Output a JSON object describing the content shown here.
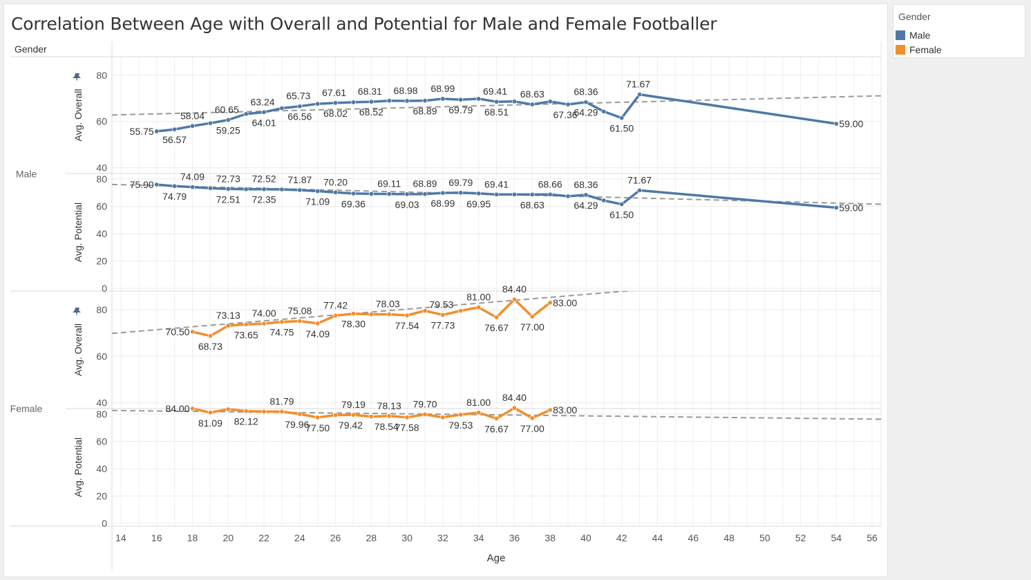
{
  "title": "Correlation Between Age with Overall and Potential for Male and Female Footballer",
  "row_header": "Gender",
  "colors": {
    "Male": "#4e79a7",
    "Female": "#f28e2b",
    "trend": "#999999"
  },
  "legend": {
    "title": "Gender",
    "items": [
      {
        "label": "Male",
        "color": "#4e79a7"
      },
      {
        "label": "Female",
        "color": "#f28e2b"
      }
    ]
  },
  "chart_data": {
    "type": "line",
    "xlabel": "Age",
    "xlim": [
      13.5,
      56.5
    ],
    "x_ticks": [
      14,
      16,
      18,
      20,
      22,
      24,
      26,
      28,
      30,
      32,
      34,
      36,
      38,
      40,
      42,
      44,
      46,
      48,
      50,
      52,
      54,
      56
    ],
    "row_labels": [
      "Male",
      "Female"
    ],
    "panes": [
      {
        "gender": "Male",
        "measure": "Avg. Overall",
        "ylabel": "Avg. Overall",
        "ylim": [
          37.5,
          88
        ],
        "yticks": [
          40,
          60,
          80
        ],
        "pinned": true,
        "x": [
          16,
          17,
          18,
          19,
          20,
          21,
          22,
          23,
          24,
          25,
          26,
          27,
          28,
          29,
          30,
          31,
          32,
          33,
          34,
          35,
          36,
          37,
          38,
          39,
          40,
          41,
          42,
          43,
          54
        ],
        "y": [
          55.75,
          56.57,
          58.04,
          59.25,
          60.65,
          63.24,
          64.01,
          65.73,
          66.56,
          67.61,
          68.02,
          68.31,
          68.52,
          68.98,
          68.89,
          68.99,
          69.79,
          69.41,
          69.79,
          68.51,
          68.63,
          67.36,
          68.63,
          67.36,
          68.36,
          64.29,
          61.5,
          71.67,
          59.0
        ],
        "labels": [
          {
            "x": 16,
            "text": "55.75",
            "pos": "left"
          },
          {
            "x": 17,
            "text": "56.57",
            "pos": "below"
          },
          {
            "x": 18,
            "text": "58.04",
            "pos": "above"
          },
          {
            "x": 20,
            "text": "59.25",
            "pos": "below"
          },
          {
            "x": 20,
            "text": "60.65",
            "pos": "above-l"
          },
          {
            "x": 22,
            "text": "63.24",
            "pos": "above-l"
          },
          {
            "x": 22,
            "text": "64.01",
            "pos": "below"
          },
          {
            "x": 24,
            "text": "65.73",
            "pos": "above-l"
          },
          {
            "x": 24,
            "text": "66.56",
            "pos": "below"
          },
          {
            "x": 26,
            "text": "67.61",
            "pos": "above-l"
          },
          {
            "x": 26,
            "text": "68.02",
            "pos": "below"
          },
          {
            "x": 28,
            "text": "68.31",
            "pos": "above-l"
          },
          {
            "x": 28,
            "text": "68.52",
            "pos": "below"
          },
          {
            "x": 30,
            "text": "68.98",
            "pos": "above-l"
          },
          {
            "x": 31,
            "text": "68.89",
            "pos": "below"
          },
          {
            "x": 32,
            "text": "68.99",
            "pos": "above"
          },
          {
            "x": 33,
            "text": "69.79",
            "pos": "below"
          },
          {
            "x": 35,
            "text": "69.41",
            "pos": "above-l"
          },
          {
            "x": 35,
            "text": "68.51",
            "pos": "below"
          },
          {
            "x": 37,
            "text": "68.63",
            "pos": "above"
          },
          {
            "x": 39,
            "text": "67.36",
            "pos": "below-l"
          },
          {
            "x": 40,
            "text": "68.36",
            "pos": "above"
          },
          {
            "x": 40,
            "text": "64.29",
            "pos": "below"
          },
          {
            "x": 42,
            "text": "61.50",
            "pos": "below"
          },
          {
            "x": 43,
            "text": "71.67",
            "pos": "above-l"
          },
          {
            "x": 54,
            "text": "59.00",
            "pos": "right"
          }
        ],
        "trend": [
          [
            13.5,
            62.8
          ],
          [
            56.5,
            71.1
          ]
        ]
      },
      {
        "gender": "Male",
        "measure": "Avg. Potential",
        "ylabel": "Avg. Potential",
        "ylim": [
          -2,
          84
        ],
        "yticks": [
          0,
          20,
          40,
          60,
          80
        ],
        "pinned": false,
        "x": [
          16,
          17,
          18,
          19,
          20,
          21,
          22,
          23,
          24,
          25,
          26,
          27,
          28,
          29,
          30,
          31,
          32,
          33,
          34,
          35,
          36,
          37,
          38,
          39,
          40,
          41,
          42,
          43,
          54
        ],
        "y": [
          75.9,
          74.79,
          74.09,
          73.3,
          72.73,
          72.51,
          72.52,
          72.35,
          71.87,
          71.09,
          70.2,
          69.36,
          69.11,
          69.03,
          68.89,
          68.99,
          69.79,
          69.95,
          69.41,
          68.63,
          68.66,
          68.63,
          68.66,
          67.36,
          68.36,
          64.29,
          61.5,
          71.67,
          59.0
        ],
        "labels": [
          {
            "x": 16,
            "text": "75.90",
            "pos": "left"
          },
          {
            "x": 17,
            "text": "74.79",
            "pos": "below"
          },
          {
            "x": 18,
            "text": "74.09",
            "pos": "above"
          },
          {
            "x": 20,
            "text": "72.73",
            "pos": "above"
          },
          {
            "x": 20,
            "text": "72.51",
            "pos": "below"
          },
          {
            "x": 22,
            "text": "72.52",
            "pos": "above"
          },
          {
            "x": 22,
            "text": "72.35",
            "pos": "below"
          },
          {
            "x": 24,
            "text": "71.87",
            "pos": "above"
          },
          {
            "x": 25,
            "text": "71.09",
            "pos": "below"
          },
          {
            "x": 26,
            "text": "70.20",
            "pos": "above"
          },
          {
            "x": 27,
            "text": "69.36",
            "pos": "below"
          },
          {
            "x": 29,
            "text": "69.11",
            "pos": "above"
          },
          {
            "x": 30,
            "text": "69.03",
            "pos": "below"
          },
          {
            "x": 31,
            "text": "68.89",
            "pos": "above"
          },
          {
            "x": 32,
            "text": "68.99",
            "pos": "below"
          },
          {
            "x": 33,
            "text": "69.79",
            "pos": "above"
          },
          {
            "x": 34,
            "text": "69.95",
            "pos": "below"
          },
          {
            "x": 35,
            "text": "69.41",
            "pos": "above"
          },
          {
            "x": 37,
            "text": "68.63",
            "pos": "below"
          },
          {
            "x": 38,
            "text": "68.66",
            "pos": "above"
          },
          {
            "x": 40,
            "text": "68.36",
            "pos": "above"
          },
          {
            "x": 40,
            "text": "64.29",
            "pos": "below"
          },
          {
            "x": 42,
            "text": "61.50",
            "pos": "below"
          },
          {
            "x": 43,
            "text": "71.67",
            "pos": "above"
          },
          {
            "x": 54,
            "text": "59.00",
            "pos": "right"
          }
        ],
        "trend": [
          [
            13.5,
            76
          ],
          [
            56.5,
            61.5
          ]
        ]
      },
      {
        "gender": "Female",
        "measure": "Avg. Overall",
        "ylabel": "Avg. Overall",
        "ylim": [
          37.5,
          88
        ],
        "yticks": [
          40,
          60,
          80
        ],
        "pinned": true,
        "x": [
          18,
          19,
          20,
          21,
          22,
          23,
          24,
          25,
          26,
          27,
          28,
          29,
          30,
          31,
          32,
          33,
          34,
          35,
          36,
          37,
          38
        ],
        "y": [
          70.5,
          68.73,
          73.13,
          73.65,
          74.0,
          74.75,
          75.08,
          74.09,
          77.42,
          78.3,
          78.03,
          78.03,
          77.54,
          79.53,
          77.73,
          79.53,
          81.0,
          76.67,
          84.4,
          77.0,
          83.0
        ],
        "labels": [
          {
            "x": 18,
            "text": "70.50",
            "pos": "left"
          },
          {
            "x": 19,
            "text": "68.73",
            "pos": "below"
          },
          {
            "x": 20,
            "text": "73.13",
            "pos": "above"
          },
          {
            "x": 21,
            "text": "73.65",
            "pos": "below"
          },
          {
            "x": 22,
            "text": "74.00",
            "pos": "above"
          },
          {
            "x": 23,
            "text": "74.75",
            "pos": "below"
          },
          {
            "x": 24,
            "text": "75.08",
            "pos": "above"
          },
          {
            "x": 25,
            "text": "74.09",
            "pos": "below"
          },
          {
            "x": 26,
            "text": "77.42",
            "pos": "above"
          },
          {
            "x": 27,
            "text": "78.30",
            "pos": "below"
          },
          {
            "x": 29,
            "text": "78.03",
            "pos": "above-l"
          },
          {
            "x": 30,
            "text": "77.54",
            "pos": "below"
          },
          {
            "x": 32,
            "text": "79.53",
            "pos": "above-l"
          },
          {
            "x": 32,
            "text": "77.73",
            "pos": "below"
          },
          {
            "x": 34,
            "text": "81.00",
            "pos": "above"
          },
          {
            "x": 35,
            "text": "76.67",
            "pos": "below"
          },
          {
            "x": 36,
            "text": "84.40",
            "pos": "above"
          },
          {
            "x": 37,
            "text": "77.00",
            "pos": "below"
          },
          {
            "x": 38,
            "text": "83.00",
            "pos": "right"
          }
        ],
        "trend": [
          [
            13.5,
            69.8
          ],
          [
            56.5,
            97
          ]
        ]
      },
      {
        "gender": "Female",
        "measure": "Avg. Potential",
        "ylabel": "Avg. Potential",
        "ylim": [
          -2,
          84
        ],
        "yticks": [
          0,
          20,
          40,
          60,
          80
        ],
        "pinned": false,
        "x": [
          18,
          19,
          20,
          21,
          22,
          23,
          24,
          25,
          26,
          27,
          28,
          29,
          30,
          31,
          32,
          33,
          34,
          35,
          36,
          37,
          38
        ],
        "y": [
          84.0,
          81.09,
          83.5,
          82.12,
          81.79,
          81.79,
          79.96,
          77.5,
          79.19,
          79.42,
          78.13,
          78.54,
          77.58,
          79.7,
          77.58,
          79.53,
          81.0,
          76.67,
          84.4,
          77.0,
          83.0
        ],
        "labels": [
          {
            "x": 18,
            "text": "84.00",
            "pos": "left"
          },
          {
            "x": 19,
            "text": "81.09",
            "pos": "below"
          },
          {
            "x": 21,
            "text": "82.12",
            "pos": "below"
          },
          {
            "x": 23,
            "text": "81.79",
            "pos": "above"
          },
          {
            "x": 24,
            "text": "79.96",
            "pos": "below-l"
          },
          {
            "x": 25,
            "text": "77.50",
            "pos": "below"
          },
          {
            "x": 27,
            "text": "79.19",
            "pos": "above"
          },
          {
            "x": 27,
            "text": "79.42",
            "pos": "below-l"
          },
          {
            "x": 29,
            "text": "78.13",
            "pos": "above"
          },
          {
            "x": 29,
            "text": "78.54",
            "pos": "below-l"
          },
          {
            "x": 30,
            "text": "77.58",
            "pos": "below"
          },
          {
            "x": 31,
            "text": "79.70",
            "pos": "above"
          },
          {
            "x": 33,
            "text": "79.53",
            "pos": "below"
          },
          {
            "x": 34,
            "text": "81.00",
            "pos": "above"
          },
          {
            "x": 35,
            "text": "76.67",
            "pos": "below"
          },
          {
            "x": 36,
            "text": "84.40",
            "pos": "above"
          },
          {
            "x": 37,
            "text": "77.00",
            "pos": "below"
          },
          {
            "x": 38,
            "text": "83.00",
            "pos": "right"
          }
        ],
        "trend": [
          [
            13.5,
            82.6
          ],
          [
            56.5,
            76.2
          ]
        ]
      }
    ]
  }
}
